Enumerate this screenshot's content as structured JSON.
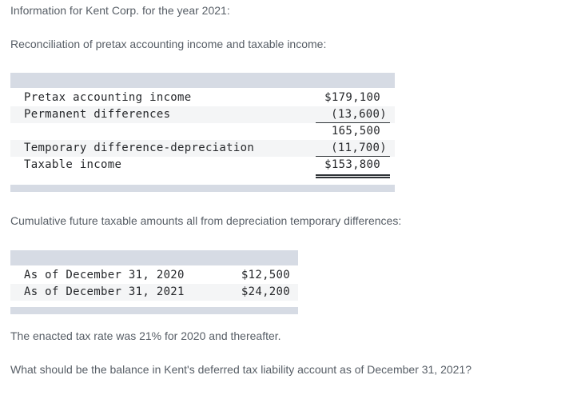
{
  "paragraphs": {
    "intro": "Information for Kent Corp. for the year 2021:",
    "reconciliation_heading": "Reconciliation of pretax accounting income and taxable income:",
    "cumulative_heading": "Cumulative future taxable amounts all from depreciation temporary differences:",
    "tax_rate_note": "The enacted tax rate was 21% for 2020 and thereafter.",
    "question": "What should be the balance in Kent's deferred tax liability account as of December 31, 2021?"
  },
  "colors": {
    "table_band": "#d6dbe4",
    "alt_row": "#f4f5f6",
    "body_text": "#575e66",
    "table_text": "#26282b"
  },
  "reconciliation_table": {
    "rows": [
      {
        "label": "Pretax accounting income",
        "value": "$179,100",
        "underline": "none"
      },
      {
        "label": "Permanent differences",
        "value": "(13,600)",
        "underline": "single"
      },
      {
        "label": "",
        "value": "165,500",
        "underline": "none"
      },
      {
        "label": "Temporary difference-depreciation",
        "value": "(11,700)",
        "underline": "single"
      },
      {
        "label": "Taxable income",
        "value": "$153,800",
        "underline": "double"
      }
    ]
  },
  "cumulative_table": {
    "rows": [
      {
        "label": "As of December 31, 2020",
        "value": "$12,500"
      },
      {
        "label": "As of December 31, 2021",
        "value": "$24,200"
      }
    ]
  }
}
